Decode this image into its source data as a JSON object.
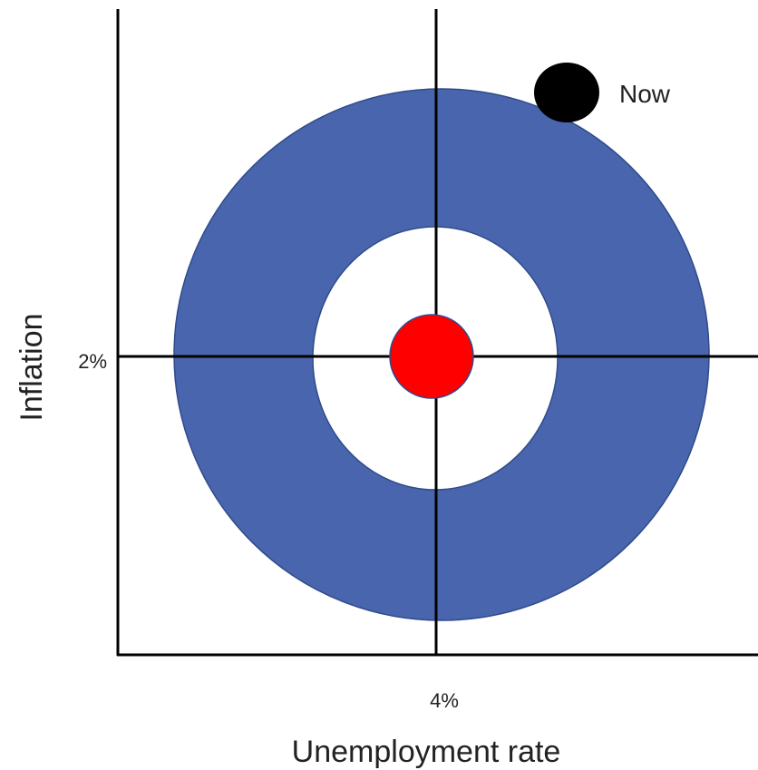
{
  "axes": {
    "x_label": "Unemployment rate",
    "y_label": "Inflation",
    "x_marker": "4%",
    "y_marker": "2%"
  },
  "annotation": "Now"
}
